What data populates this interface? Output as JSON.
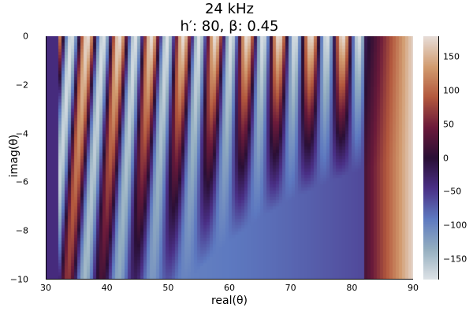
{
  "chart_data": {
    "type": "heatmap",
    "title": [
      "24 kHz",
      "h′: 80, β: 0.45"
    ],
    "xlabel": "real(θ)",
    "ylabel": "imag(θ)",
    "xlim": [
      30,
      90
    ],
    "ylim": [
      -10,
      0
    ],
    "x_ticks": [
      "30",
      "40",
      "50",
      "60",
      "70",
      "80",
      "90"
    ],
    "y_ticks": [
      "0",
      "−2",
      "−4",
      "−6",
      "−8",
      "−10"
    ],
    "colorbar": {
      "range": [
        -180,
        180
      ],
      "ticks": [
        "150",
        "100",
        "50",
        "0",
        "−50",
        "−100",
        "−150"
      ],
      "colormap": "twilight-shifted",
      "colors": [
        "#dde2e6",
        "#93aec0",
        "#5d79c0",
        "#4a2f86",
        "#2a0f35",
        "#6b1a3a",
        "#b3583d",
        "#d29c70",
        "#e7ddd8"
      ]
    },
    "grid": false,
    "legend": "colorbar-right"
  }
}
